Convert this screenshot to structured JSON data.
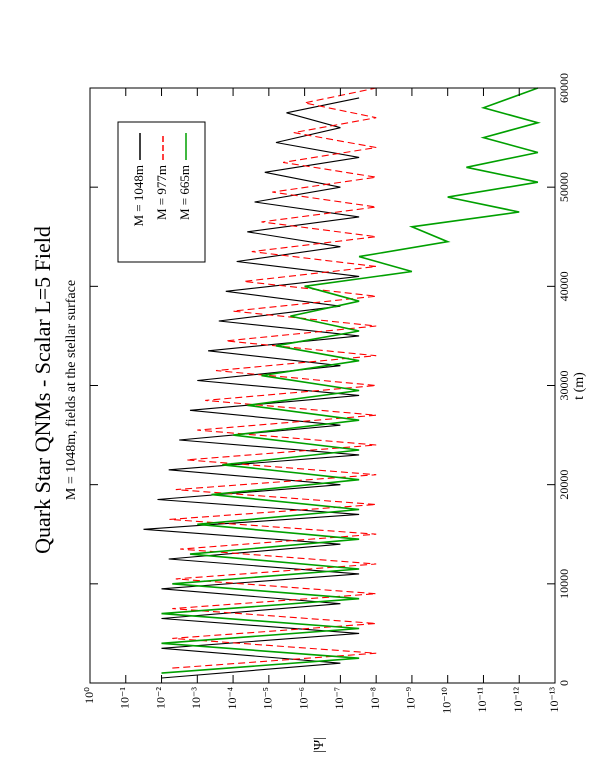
{
  "chart_data": {
    "type": "line",
    "title": "Quark Star QNMs - Scalar L=5 Field",
    "subtitle": "M = 1048m, fields at the stellar surface",
    "x_label": "t (m)",
    "y_label": "|Ψ|",
    "xlim": [
      0,
      60000
    ],
    "xticks": [
      0,
      10000,
      20000,
      30000,
      40000,
      50000,
      60000
    ],
    "ylim": [
      1e-13,
      1
    ],
    "log_y": true,
    "yticks": [
      {
        "value": 1,
        "label": "10⁰"
      },
      {
        "value": 0.1,
        "label": "10⁻¹"
      },
      {
        "value": 0.01,
        "label": "10⁻²"
      },
      {
        "value": 0.001,
        "label": "10⁻³"
      },
      {
        "value": 0.0001,
        "label": "10⁻⁴"
      },
      {
        "value": 1e-05,
        "label": "10⁻⁵"
      },
      {
        "value": 1e-06,
        "label": "10⁻⁶"
      },
      {
        "value": 1e-07,
        "label": "10⁻⁷"
      },
      {
        "value": 1e-08,
        "label": "10⁻⁸"
      },
      {
        "value": 1e-09,
        "label": "10⁻⁹"
      },
      {
        "value": 1e-10,
        "label": "10⁻¹⁰"
      },
      {
        "value": 1e-11,
        "label": "10⁻¹¹"
      },
      {
        "value": 1e-12,
        "label": "10⁻¹²"
      },
      {
        "value": 1e-13,
        "label": "10⁻¹³"
      }
    ],
    "series": [
      {
        "name": "M = 1048m",
        "color": "#000000",
        "dash": false,
        "x": [
          500,
          2000,
          3500,
          5000,
          6500,
          8000,
          9500,
          11000,
          12500,
          14000,
          15500,
          17000,
          18500,
          20000,
          21500,
          23000,
          24500,
          26000,
          27500,
          29000,
          30500,
          32000,
          33500,
          35000,
          36500,
          38000,
          39500,
          41000,
          42500,
          44000,
          45500,
          47000,
          48500,
          50000,
          51500,
          53000,
          54500,
          56000,
          57500,
          59000
        ],
        "values": [
          0.01,
          1e-07,
          0.01,
          3e-08,
          0.01,
          1e-07,
          0.01,
          3e-08,
          0.0063,
          1e-07,
          0.032,
          3e-08,
          0.013,
          1e-07,
          0.0063,
          3e-08,
          0.0032,
          1e-07,
          0.0016,
          3e-08,
          0.001,
          1e-07,
          0.0005,
          3e-08,
          0.00025,
          1e-07,
          0.00016,
          3e-08,
          7.9e-05,
          1e-07,
          4e-05,
          3e-08,
          2.5e-05,
          1e-07,
          1.3e-05,
          3e-08,
          6.3e-06,
          1e-07,
          3.2e-06,
          3e-08
        ]
      },
      {
        "name": "M = 977m",
        "color": "#ff0000",
        "dash": true,
        "x": [
          1500,
          3000,
          4500,
          6000,
          7500,
          9000,
          10500,
          12000,
          13500,
          15000,
          16500,
          18000,
          19500,
          21000,
          22500,
          24000,
          25500,
          27000,
          28500,
          30000,
          31500,
          33000,
          34500,
          36000,
          37500,
          39000,
          40500,
          42000,
          43500,
          45000,
          46500,
          48000,
          49500,
          51000,
          52500,
          54000,
          55500,
          57000,
          58500,
          60000
        ],
        "values": [
          0.005,
          1e-08,
          0.005,
          1e-08,
          0.005,
          1e-08,
          0.004,
          1e-08,
          0.003,
          1e-08,
          0.006,
          1e-08,
          0.004,
          1e-08,
          0.002,
          1e-08,
          0.001,
          1e-08,
          0.0006,
          1e-08,
          0.0003,
          1e-08,
          0.00016,
          1e-08,
          0.0001,
          1e-08,
          5e-05,
          1e-08,
          3e-05,
          1e-08,
          1.6e-05,
          1e-08,
          8e-06,
          1e-08,
          4e-06,
          1e-08,
          2e-06,
          1e-08,
          1e-06,
          1e-08
        ]
      },
      {
        "name": "M = 665m",
        "color": "#00a000",
        "dash": false,
        "x": [
          1000,
          2500,
          4000,
          5500,
          7000,
          8500,
          10000,
          11500,
          13000,
          14500,
          16000,
          17500,
          19000,
          20500,
          22000,
          23500,
          25000,
          26500,
          28000,
          29500,
          31000,
          32500,
          34000,
          35500,
          37000,
          38500,
          40000,
          41500,
          43000,
          44500,
          46000,
          47500,
          49000,
          50500,
          52000,
          53500,
          55000,
          56500,
          58000,
          60000
        ],
        "values": [
          0.01,
          3e-08,
          0.01,
          3e-08,
          0.01,
          3e-08,
          0.005,
          3e-08,
          0.0016,
          3e-08,
          0.001,
          3e-08,
          0.0004,
          3e-08,
          0.0002,
          3e-08,
          0.0001,
          3e-08,
          4e-05,
          3e-08,
          1.6e-05,
          3e-08,
          6.3e-06,
          3e-08,
          2.5e-06,
          3e-08,
          1e-06,
          1e-09,
          3e-08,
          1e-10,
          1e-09,
          1e-12,
          1e-10,
          3e-13,
          3e-11,
          3e-13,
          1e-11,
          3e-13,
          1e-11,
          3e-13
        ]
      }
    ]
  }
}
